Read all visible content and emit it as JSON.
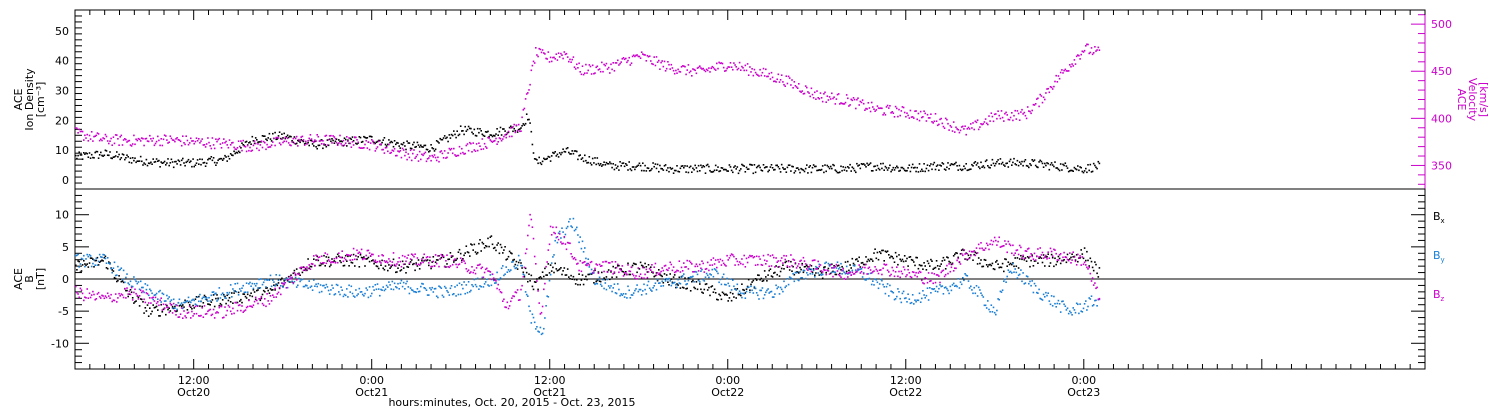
{
  "chart_data": {
    "type": "scatter",
    "time_axis": {
      "range": [
        "2015-10-20T04:00",
        "2015-10-23T23:00"
      ],
      "tick_labels": [
        {
          "t": "2015-10-20T12:00",
          "line1": "12:00",
          "line2": "Oct20"
        },
        {
          "t": "2015-10-21T00:00",
          "line1": "0:00",
          "line2": "Oct21"
        },
        {
          "t": "2015-10-21T12:00",
          "line1": "12:00",
          "line2": "Oct21"
        },
        {
          "t": "2015-10-22T00:00",
          "line1": "0:00",
          "line2": "Oct22"
        },
        {
          "t": "2015-10-22T12:00",
          "line1": "12:00",
          "line2": "Oct22"
        },
        {
          "t": "2015-10-23T00:00",
          "line1": "0:00",
          "line2": "Oct23"
        }
      ],
      "xlabel": "hours:minutes, Oct. 20, 2015 - Oct. 23, 2015"
    },
    "panels": [
      {
        "id": "top",
        "left_axis": {
          "ylabel_lines": [
            "ACE",
            "Ion Density",
            "[cm⁻³]"
          ],
          "ylim": [
            -3,
            57
          ],
          "ticks": [
            0,
            10,
            20,
            30,
            40,
            50
          ],
          "color": "#000000"
        },
        "right_axis": {
          "ylabel_lines": [
            "ACE",
            "Velocity",
            "[km/s]"
          ],
          "ylim": [
            325,
            515
          ],
          "ticks": [
            350,
            400,
            450,
            500
          ],
          "color": "#cc00cc"
        },
        "series": [
          {
            "axis": "left",
            "color": "#000000",
            "points": [
              [
                "2015-10-20T04:00",
                8
              ],
              [
                "2015-10-20T06:00",
                9
              ],
              [
                "2015-10-20T08:00",
                7
              ],
              [
                "2015-10-20T10:00",
                6
              ],
              [
                "2015-10-20T12:00",
                6
              ],
              [
                "2015-10-20T14:00",
                7
              ],
              [
                "2015-10-20T16:00",
                14
              ],
              [
                "2015-10-20T18:00",
                15
              ],
              [
                "2015-10-20T20:00",
                12
              ],
              [
                "2015-10-20T22:00",
                13
              ],
              [
                "2015-10-21T00:00",
                14
              ],
              [
                "2015-10-21T02:00",
                12
              ],
              [
                "2015-10-21T04:00",
                11
              ],
              [
                "2015-10-21T06:00",
                17
              ],
              [
                "2015-10-21T08:00",
                16
              ],
              [
                "2015-10-21T10:00",
                18
              ],
              [
                "2015-10-21T10:30",
                22
              ],
              [
                "2015-10-21T11:00",
                6
              ],
              [
                "2015-10-21T12:00",
                8
              ],
              [
                "2015-10-21T13:00",
                10
              ],
              [
                "2015-10-21T14:00",
                8
              ],
              [
                "2015-10-21T16:00",
                5
              ],
              [
                "2015-10-21T18:00",
                5
              ],
              [
                "2015-10-21T20:00",
                4
              ],
              [
                "2015-10-21T22:00",
                4
              ],
              [
                "2015-10-22T00:00",
                4
              ],
              [
                "2015-10-22T02:00",
                4
              ],
              [
                "2015-10-22T04:00",
                4
              ],
              [
                "2015-10-22T06:00",
                4
              ],
              [
                "2015-10-22T08:00",
                4
              ],
              [
                "2015-10-22T10:00",
                5
              ],
              [
                "2015-10-22T12:00",
                4
              ],
              [
                "2015-10-22T14:00",
                5
              ],
              [
                "2015-10-22T16:00",
                5
              ],
              [
                "2015-10-22T18:00",
                6
              ],
              [
                "2015-10-22T20:00",
                6
              ],
              [
                "2015-10-22T22:00",
                5
              ],
              [
                "2015-10-23T00:00",
                4
              ],
              [
                "2015-10-23T01:00",
                5
              ]
            ]
          },
          {
            "axis": "right",
            "color": "#cc00cc",
            "points": [
              [
                "2015-10-20T04:00",
                385
              ],
              [
                "2015-10-20T06:00",
                378
              ],
              [
                "2015-10-20T08:00",
                377
              ],
              [
                "2015-10-20T10:00",
                378
              ],
              [
                "2015-10-20T12:00",
                376
              ],
              [
                "2015-10-20T14:00",
                374
              ],
              [
                "2015-10-20T16:00",
                371
              ],
              [
                "2015-10-20T18:00",
                376
              ],
              [
                "2015-10-20T20:00",
                378
              ],
              [
                "2015-10-20T22:00",
                377
              ],
              [
                "2015-10-21T00:00",
                373
              ],
              [
                "2015-10-21T02:00",
                364
              ],
              [
                "2015-10-21T04:00",
                358
              ],
              [
                "2015-10-21T06:00",
                368
              ],
              [
                "2015-10-21T08:00",
                376
              ],
              [
                "2015-10-21T10:00",
                392
              ],
              [
                "2015-10-21T11:00",
                470
              ],
              [
                "2015-10-21T12:00",
                465
              ],
              [
                "2015-10-21T13:00",
                470
              ],
              [
                "2015-10-21T14:00",
                452
              ],
              [
                "2015-10-21T16:00",
                455
              ],
              [
                "2015-10-21T18:00",
                467
              ],
              [
                "2015-10-21T20:00",
                455
              ],
              [
                "2015-10-21T22:00",
                450
              ],
              [
                "2015-10-22T00:00",
                458
              ],
              [
                "2015-10-22T02:00",
                450
              ],
              [
                "2015-10-22T04:00",
                440
              ],
              [
                "2015-10-22T06:00",
                425
              ],
              [
                "2015-10-22T08:00",
                420
              ],
              [
                "2015-10-22T10:00",
                410
              ],
              [
                "2015-10-22T12:00",
                407
              ],
              [
                "2015-10-22T14:00",
                400
              ],
              [
                "2015-10-22T16:00",
                387
              ],
              [
                "2015-10-22T18:00",
                403
              ],
              [
                "2015-10-22T20:00",
                405
              ],
              [
                "2015-10-22T21:00",
                420
              ],
              [
                "2015-10-22T22:00",
                440
              ],
              [
                "2015-10-23T00:00",
                475
              ],
              [
                "2015-10-23T01:00",
                470
              ]
            ]
          }
        ]
      },
      {
        "id": "bottom",
        "left_axis": {
          "ylabel_lines": [
            "ACE",
            "B",
            "[nT]"
          ],
          "ylim": [
            -14,
            14
          ],
          "ticks": [
            -10,
            -5,
            0,
            5,
            10
          ],
          "color": "#000000"
        },
        "zero_line": 0,
        "series": [
          {
            "name": "B",
            "sub": "x",
            "color": "#000000",
            "points": [
              [
                "2015-10-20T04:00",
                2
              ],
              [
                "2015-10-20T06:00",
                3
              ],
              [
                "2015-10-20T07:30",
                -2
              ],
              [
                "2015-10-20T09:00",
                -5
              ],
              [
                "2015-10-20T11:00",
                -4
              ],
              [
                "2015-10-20T14:00",
                -3
              ],
              [
                "2015-10-20T17:00",
                -2
              ],
              [
                "2015-10-20T20:00",
                3
              ],
              [
                "2015-10-20T23:00",
                3
              ],
              [
                "2015-10-21T02:00",
                2
              ],
              [
                "2015-10-21T05:00",
                3
              ],
              [
                "2015-10-21T08:00",
                6
              ],
              [
                "2015-10-21T10:00",
                2
              ],
              [
                "2015-10-21T11:00",
                -1
              ],
              [
                "2015-10-21T12:00",
                2
              ],
              [
                "2015-10-21T14:00",
                0
              ],
              [
                "2015-10-21T16:00",
                1
              ],
              [
                "2015-10-21T18:00",
                2
              ],
              [
                "2015-10-21T20:00",
                0
              ],
              [
                "2015-10-21T22:00",
                -1
              ],
              [
                "2015-10-22T00:00",
                -3
              ],
              [
                "2015-10-22T02:00",
                0
              ],
              [
                "2015-10-22T04:00",
                2
              ],
              [
                "2015-10-22T06:00",
                1
              ],
              [
                "2015-10-22T08:00",
                2
              ],
              [
                "2015-10-22T10:00",
                4
              ],
              [
                "2015-10-22T12:00",
                3
              ],
              [
                "2015-10-22T14:00",
                2
              ],
              [
                "2015-10-22T16:00",
                4
              ],
              [
                "2015-10-22T18:00",
                2
              ],
              [
                "2015-10-22T20:00",
                3
              ],
              [
                "2015-10-22T22:00",
                3
              ],
              [
                "2015-10-23T00:00",
                4
              ],
              [
                "2015-10-23T01:00",
                1
              ]
            ]
          },
          {
            "name": "B",
            "sub": "y",
            "color": "#1a7fd6",
            "points": [
              [
                "2015-10-20T04:00",
                3
              ],
              [
                "2015-10-20T06:00",
                3
              ],
              [
                "2015-10-20T07:30",
                0
              ],
              [
                "2015-10-20T09:00",
                -2
              ],
              [
                "2015-10-20T11:00",
                -4
              ],
              [
                "2015-10-20T14:00",
                -2
              ],
              [
                "2015-10-20T17:00",
                0
              ],
              [
                "2015-10-20T20:00",
                -1
              ],
              [
                "2015-10-20T23:00",
                -2
              ],
              [
                "2015-10-21T02:00",
                -1
              ],
              [
                "2015-10-21T05:00",
                -2
              ],
              [
                "2015-10-21T08:00",
                0
              ],
              [
                "2015-10-21T10:00",
                3
              ],
              [
                "2015-10-21T10:40",
                -6
              ],
              [
                "2015-10-21T11:30",
                -8
              ],
              [
                "2015-10-21T12:20",
                6
              ],
              [
                "2015-10-21T13:30",
                9
              ],
              [
                "2015-10-21T15:00",
                0
              ],
              [
                "2015-10-21T17:00",
                -2
              ],
              [
                "2015-10-21T19:00",
                -1
              ],
              [
                "2015-10-21T21:00",
                0
              ],
              [
                "2015-10-21T23:00",
                1
              ],
              [
                "2015-10-22T01:00",
                -2
              ],
              [
                "2015-10-22T03:00",
                -2
              ],
              [
                "2015-10-22T05:00",
                1
              ],
              [
                "2015-10-22T07:00",
                2
              ],
              [
                "2015-10-22T09:00",
                1
              ],
              [
                "2015-10-22T11:00",
                -2
              ],
              [
                "2015-10-22T12:00",
                -3
              ],
              [
                "2015-10-22T14:00",
                -2
              ],
              [
                "2015-10-22T16:00",
                0
              ],
              [
                "2015-10-22T18:00",
                -5
              ],
              [
                "2015-10-22T19:00",
                2
              ],
              [
                "2015-10-22T21:00",
                -2
              ],
              [
                "2015-10-22T23:00",
                -5
              ],
              [
                "2015-10-23T01:00",
                -3
              ]
            ]
          },
          {
            "name": "B",
            "sub": "z",
            "color": "#cc00cc",
            "points": [
              [
                "2015-10-20T04:00",
                -2
              ],
              [
                "2015-10-20T06:00",
                -3
              ],
              [
                "2015-10-20T07:30",
                -2
              ],
              [
                "2015-10-20T09:00",
                -3
              ],
              [
                "2015-10-20T11:00",
                -5
              ],
              [
                "2015-10-20T14:00",
                -5
              ],
              [
                "2015-10-20T17:00",
                -3
              ],
              [
                "2015-10-20T20:00",
                3
              ],
              [
                "2015-10-20T23:00",
                4
              ],
              [
                "2015-10-21T02:00",
                3
              ],
              [
                "2015-10-21T05:00",
                3
              ],
              [
                "2015-10-21T08:00",
                1
              ],
              [
                "2015-10-21T09:00",
                -4
              ],
              [
                "2015-10-21T10:00",
                -2
              ],
              [
                "2015-10-21T10:40",
                10
              ],
              [
                "2015-10-21T11:20",
                -6
              ],
              [
                "2015-10-21T12:00",
                8
              ],
              [
                "2015-10-21T13:00",
                6
              ],
              [
                "2015-10-21T14:00",
                2
              ],
              [
                "2015-10-21T16:00",
                2
              ],
              [
                "2015-10-21T18:00",
                1
              ],
              [
                "2015-10-21T20:00",
                2
              ],
              [
                "2015-10-21T22:00",
                2
              ],
              [
                "2015-10-22T00:00",
                3
              ],
              [
                "2015-10-22T02:00",
                3
              ],
              [
                "2015-10-22T04:00",
                3
              ],
              [
                "2015-10-22T06:00",
                2
              ],
              [
                "2015-10-22T08:00",
                1
              ],
              [
                "2015-10-22T10:00",
                2
              ],
              [
                "2015-10-22T12:00",
                1
              ],
              [
                "2015-10-22T14:00",
                0
              ],
              [
                "2015-10-22T16:00",
                4
              ],
              [
                "2015-10-22T18:00",
                6
              ],
              [
                "2015-10-22T20:00",
                4
              ],
              [
                "2015-10-22T22:00",
                4
              ],
              [
                "2015-10-23T00:00",
                3
              ],
              [
                "2015-10-23T01:00",
                -3
              ]
            ]
          }
        ]
      }
    ]
  }
}
